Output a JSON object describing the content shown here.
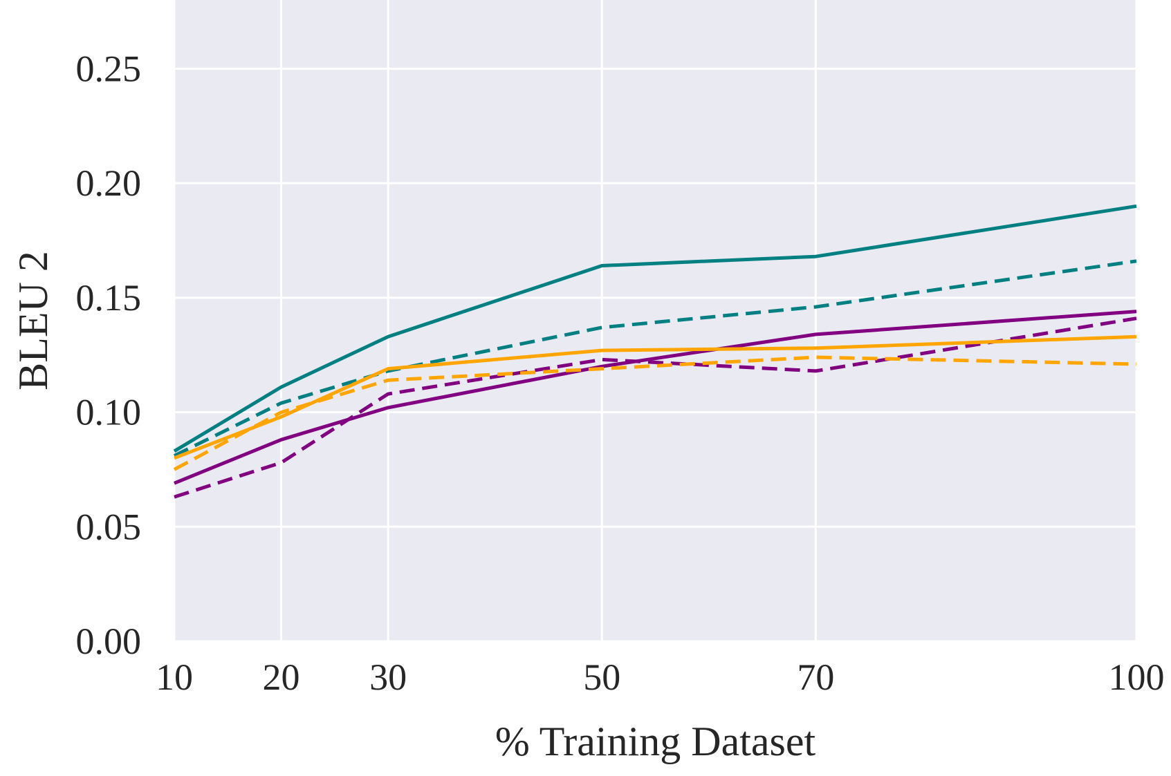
{
  "chart_data": {
    "type": "line",
    "title": "",
    "xlabel": "% Training Dataset",
    "ylabel": "BLEU 2",
    "x": [
      10,
      20,
      30,
      50,
      70,
      100
    ],
    "x_tick_labels": [
      "10",
      "20",
      "30",
      "50",
      "70",
      "100"
    ],
    "xlim": [
      10,
      100
    ],
    "ylim": [
      0,
      0.28
    ],
    "y_ticks": [
      0.0,
      0.05,
      0.1,
      0.15,
      0.2,
      0.25
    ],
    "y_tick_labels": [
      "0.00",
      "0.05",
      "0.10",
      "0.15",
      "0.20",
      "0.25"
    ],
    "grid": true,
    "background_color": "#eaeaf2",
    "series": [
      {
        "name": "teal-solid",
        "color": "#008080",
        "style": "solid",
        "values": [
          0.083,
          0.111,
          0.133,
          0.164,
          0.168,
          0.19
        ]
      },
      {
        "name": "teal-dashed",
        "color": "#008080",
        "style": "dashed",
        "values": [
          0.081,
          0.104,
          0.118,
          0.137,
          0.146,
          0.166
        ]
      },
      {
        "name": "purple-solid",
        "color": "#800080",
        "style": "solid",
        "values": [
          0.069,
          0.088,
          0.102,
          0.12,
          0.134,
          0.144
        ]
      },
      {
        "name": "purple-dashed",
        "color": "#800080",
        "style": "dashed",
        "values": [
          0.063,
          0.078,
          0.108,
          0.123,
          0.118,
          0.141
        ]
      },
      {
        "name": "orange-solid",
        "color": "#ffa500",
        "style": "solid",
        "values": [
          0.08,
          0.098,
          0.119,
          0.127,
          0.128,
          0.133
        ]
      },
      {
        "name": "orange-dashed",
        "color": "#ffa500",
        "style": "dashed",
        "values": [
          0.075,
          0.1,
          0.114,
          0.119,
          0.124,
          0.121
        ]
      }
    ]
  }
}
